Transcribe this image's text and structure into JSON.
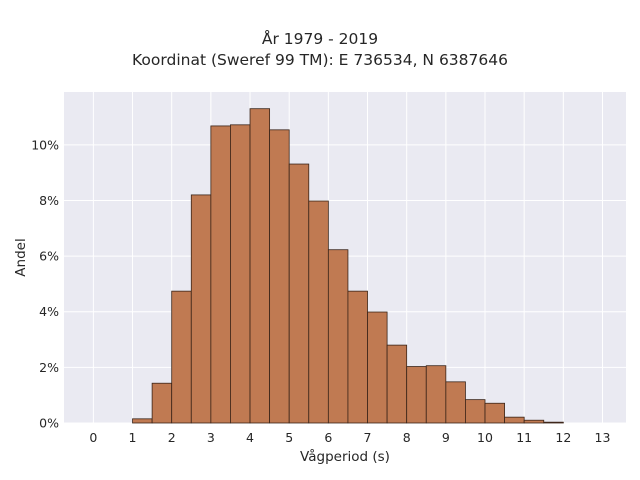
{
  "chart_data": {
    "type": "bar",
    "title": "År 1979 - 2019",
    "subtitle": "Koordinat (Sweref 99 TM): E 736534, N 6387646",
    "xlabel": "Vågperiod (s)",
    "ylabel": "Andel",
    "xlim": [
      -0.75,
      13.6
    ],
    "ylim": [
      0,
      0.119
    ],
    "bin_width": 0.5,
    "x_ticks": [
      0,
      1,
      2,
      3,
      4,
      5,
      6,
      7,
      8,
      9,
      10,
      11,
      12,
      13
    ],
    "y_ticks": [
      0,
      0.02,
      0.04,
      0.06,
      0.08,
      0.1
    ],
    "y_tick_labels": [
      "0%",
      "2%",
      "4%",
      "6%",
      "8%",
      "10%"
    ],
    "bins": [
      {
        "x0": 1.0,
        "value": 0.0015
      },
      {
        "x0": 1.5,
        "value": 0.0143
      },
      {
        "x0": 2.0,
        "value": 0.0474
      },
      {
        "x0": 2.5,
        "value": 0.082
      },
      {
        "x0": 3.0,
        "value": 0.1068
      },
      {
        "x0": 3.5,
        "value": 0.1072
      },
      {
        "x0": 4.0,
        "value": 0.113
      },
      {
        "x0": 4.5,
        "value": 0.1054
      },
      {
        "x0": 5.0,
        "value": 0.0931
      },
      {
        "x0": 5.5,
        "value": 0.0798
      },
      {
        "x0": 6.0,
        "value": 0.0623
      },
      {
        "x0": 6.5,
        "value": 0.0474
      },
      {
        "x0": 7.0,
        "value": 0.0399
      },
      {
        "x0": 7.5,
        "value": 0.028
      },
      {
        "x0": 8.0,
        "value": 0.0203
      },
      {
        "x0": 8.5,
        "value": 0.0206
      },
      {
        "x0": 9.0,
        "value": 0.0148
      },
      {
        "x0": 9.5,
        "value": 0.0084
      },
      {
        "x0": 10.0,
        "value": 0.0071
      },
      {
        "x0": 10.5,
        "value": 0.0021
      },
      {
        "x0": 11.0,
        "value": 0.001
      },
      {
        "x0": 11.5,
        "value": 0.0003
      }
    ],
    "grid": true,
    "colors": {
      "bar_fill": "#c07a52",
      "bar_edge": "#3a2418",
      "plot_bg": "#eaeaf2",
      "grid": "#ffffff"
    }
  }
}
